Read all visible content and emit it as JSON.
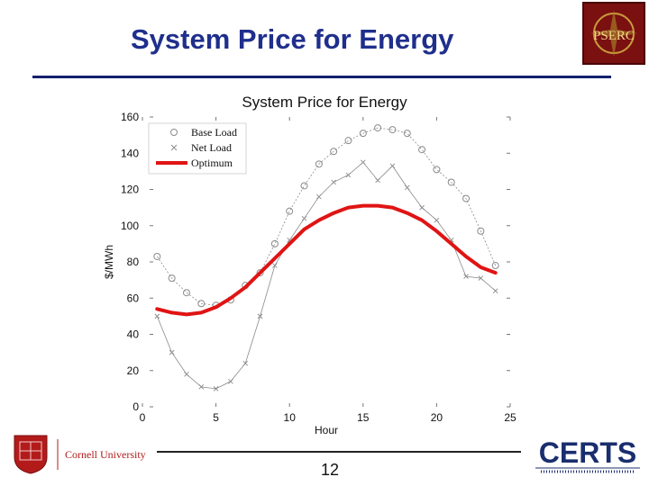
{
  "slide": {
    "title": "System Price for Energy",
    "page_number": "12"
  },
  "logos": {
    "pserc": "PSERC",
    "cornell": "Cornell University",
    "certs": "CERTS"
  },
  "colors": {
    "title": "#1f2f8c",
    "optimum": "#e01414",
    "series_gray": "#8a8a8a"
  },
  "chart_data": {
    "type": "line",
    "title": "System Price for Energy",
    "xlabel": "Hour",
    "ylabel": "$/MWh",
    "xlim": [
      0,
      25
    ],
    "ylim": [
      0,
      160
    ],
    "xticks": [
      "0",
      "5",
      "10",
      "15",
      "20",
      "25"
    ],
    "yticks": [
      "0",
      "20",
      "40",
      "60",
      "80",
      "100",
      "120",
      "140",
      "160"
    ],
    "grid": false,
    "legend_position": "top-left",
    "series": [
      {
        "name": "Base Load",
        "style": "dashed-circle-markers",
        "color": "#8a8a8a",
        "x": [
          1,
          2,
          3,
          4,
          5,
          6,
          7,
          8,
          9,
          10,
          11,
          12,
          13,
          14,
          15,
          16,
          17,
          18,
          19,
          20,
          21,
          22,
          23,
          24
        ],
        "y": [
          83,
          71,
          63,
          57,
          56,
          59,
          67,
          74,
          90,
          108,
          122,
          134,
          141,
          147,
          151,
          154,
          153,
          151,
          142,
          131,
          124,
          115,
          97,
          78
        ]
      },
      {
        "name": "Net Load",
        "style": "solid-x-markers",
        "color": "#8a8a8a",
        "x": [
          1,
          2,
          3,
          4,
          5,
          6,
          7,
          8,
          9,
          10,
          11,
          12,
          13,
          14,
          15,
          16,
          17,
          18,
          19,
          20,
          21,
          22,
          23,
          24
        ],
        "y": [
          50,
          30,
          18,
          11,
          10,
          14,
          24,
          50,
          78,
          92,
          104,
          116,
          124,
          128,
          135,
          125,
          133,
          121,
          110,
          103,
          92,
          72,
          71,
          64
        ]
      },
      {
        "name": "Optimum",
        "style": "thick-solid",
        "color": "#e01414",
        "x": [
          1,
          2,
          3,
          4,
          5,
          6,
          7,
          8,
          9,
          10,
          11,
          12,
          13,
          14,
          15,
          16,
          17,
          18,
          19,
          20,
          21,
          22,
          23,
          24
        ],
        "y": [
          54,
          52,
          51,
          52,
          55,
          60,
          66,
          74,
          82,
          90,
          98,
          103,
          107,
          110,
          111,
          111,
          110,
          107,
          103,
          97,
          90,
          83,
          77,
          74
        ]
      }
    ]
  }
}
